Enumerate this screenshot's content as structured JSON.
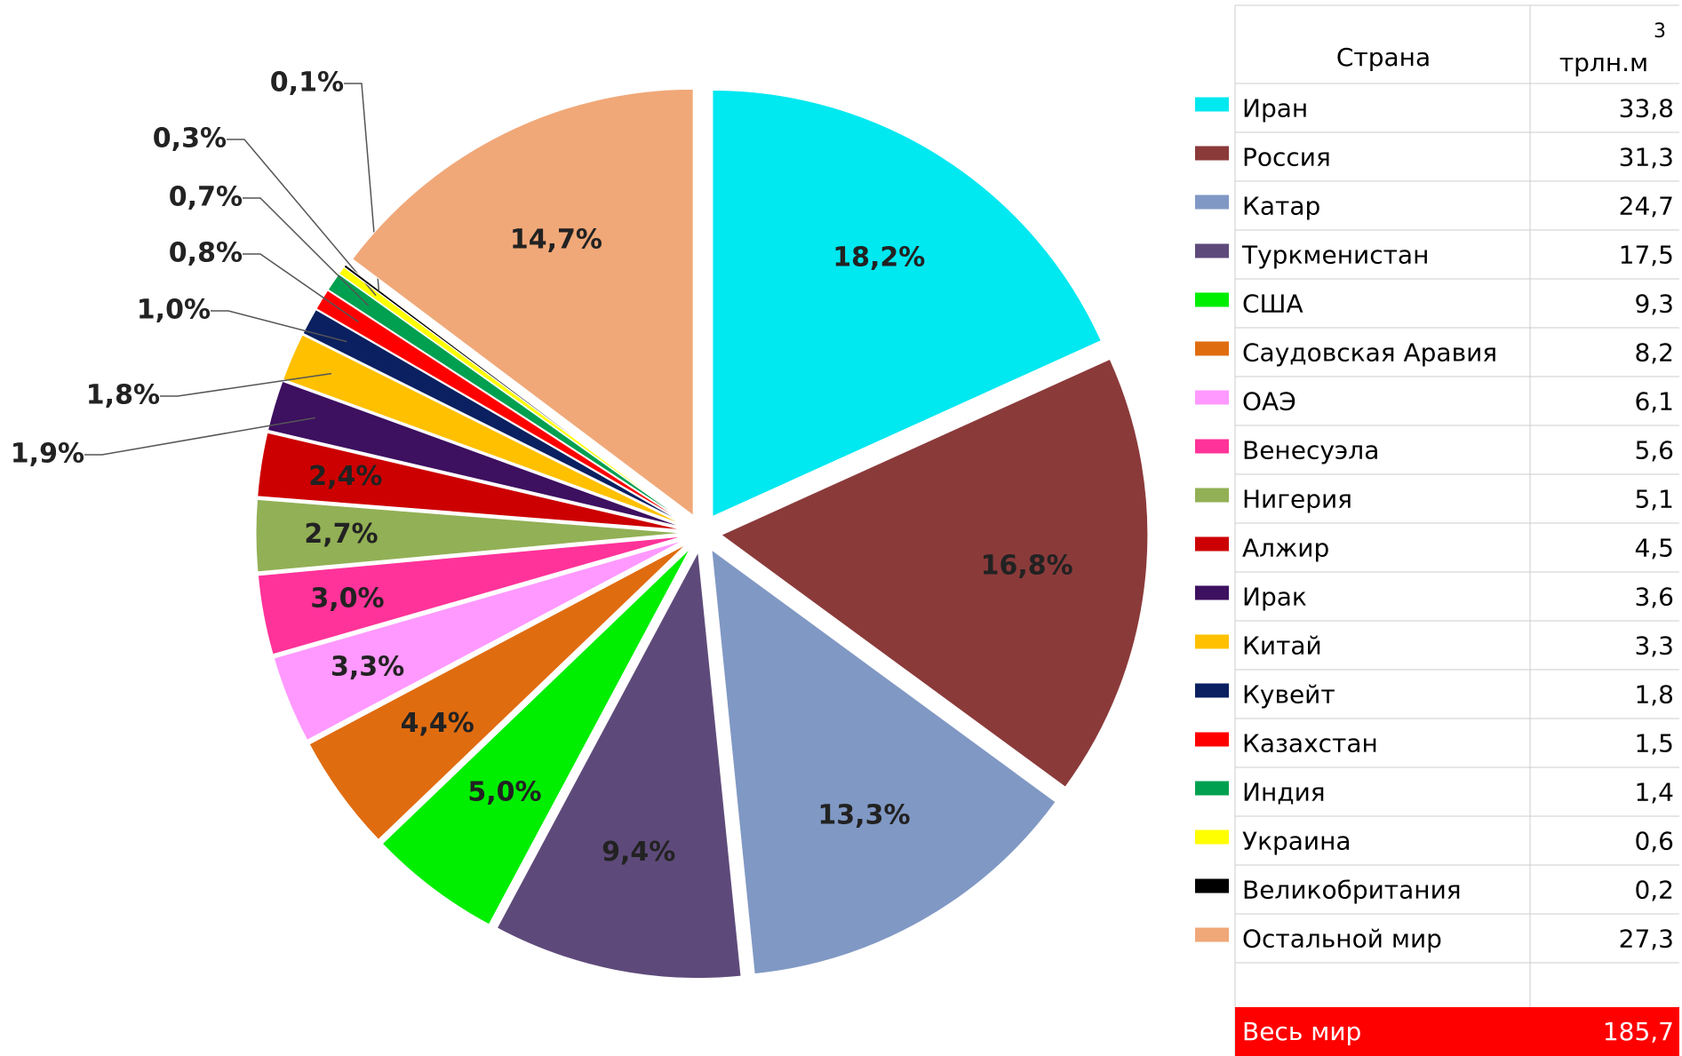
{
  "chart_data": {
    "type": "pie",
    "categories": [
      "Иран",
      "Россия",
      "Катар",
      "Туркменистан",
      "США",
      "Саудовская Аравия",
      "ОАЭ",
      "Венесуэла",
      "Нигерия",
      "Алжир",
      "Ирак",
      "Китай",
      "Кувейт",
      "Казахстан",
      "Индия",
      "Украина",
      "Великобритания",
      "Остальной мир"
    ],
    "values": [
      18.2,
      16.8,
      13.3,
      9.4,
      5.0,
      4.4,
      3.3,
      3.0,
      2.7,
      2.4,
      1.9,
      1.8,
      1.0,
      0.8,
      0.7,
      0.3,
      0.1,
      14.7
    ],
    "value_labels": [
      "18,2%",
      "16,8%",
      "13,3%",
      "9,4%",
      "5,0%",
      "4,4%",
      "3,3%",
      "3,0%",
      "2,7%",
      "2,4%",
      "1,9%",
      "1,8%",
      "1,0%",
      "0,8%",
      "0,7%",
      "0,3%",
      "0,1%",
      "14,7%"
    ],
    "colors": [
      "#00e8f0",
      "#8b3a3a",
      "#8098c4",
      "#5e4a7a",
      "#00ee00",
      "#e06c10",
      "#ff99ff",
      "#ff3399",
      "#92b055",
      "#cc0000",
      "#3d1060",
      "#ffc000",
      "#0a2060",
      "#ff0000",
      "#00a050",
      "#ffff00",
      "#000000",
      "#f0a878"
    ],
    "table": {
      "header": {
        "country": "Страна",
        "unit": "трлн.м",
        "unit_sup": "3"
      },
      "volumes": [
        "33,8",
        "31,3",
        "24,7",
        "17,5",
        "9,3",
        "8,2",
        "6,1",
        "5,6",
        "5,1",
        "4,5",
        "3,6",
        "3,3",
        "1,8",
        "1,5",
        "1,4",
        "0,6",
        "0,2",
        "27,3"
      ],
      "total": {
        "label": "Весь мир",
        "value": "185,7"
      }
    }
  }
}
